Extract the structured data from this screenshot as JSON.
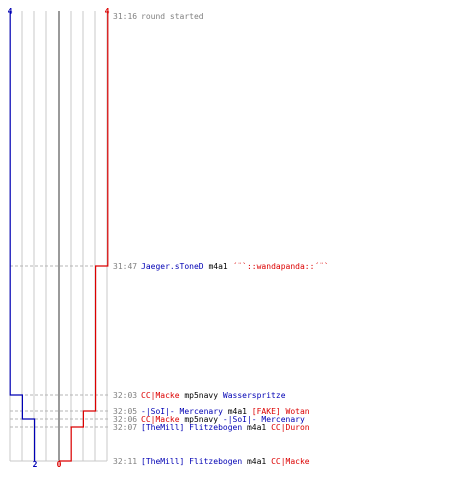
{
  "colors": {
    "grid": "#c8c8c8",
    "center": "#808080",
    "dotted": "#b4b4b4",
    "blue": "#0000b4",
    "red": "#dc0000",
    "time": "#808080",
    "neutral": "#000000"
  },
  "counts": {
    "blue_top": "4",
    "red_top": "4",
    "blue_bottom": "2",
    "red_bottom": "0"
  },
  "events": [
    {
      "time": "31:16",
      "parts": [
        {
          "text": "round started",
          "color": "time"
        }
      ]
    },
    {
      "time": "31:47",
      "parts": [
        {
          "text": "Jaeger.sToneD",
          "color": "blue"
        },
        {
          "text": " m4a1 ",
          "color": "neutral"
        },
        {
          "text": "´¨`::wandapanda::´¨`",
          "color": "red"
        }
      ]
    },
    {
      "time": "32:03",
      "parts": [
        {
          "text": "CC|Macke",
          "color": "red"
        },
        {
          "text": " mp5navy ",
          "color": "neutral"
        },
        {
          "text": "Wasserspritze",
          "color": "blue"
        }
      ]
    },
    {
      "time": "32:05",
      "parts": [
        {
          "text": "-|SoI|- Mercenary",
          "color": "blue"
        },
        {
          "text": " m4a1 ",
          "color": "neutral"
        },
        {
          "text": "[FAKE] Wotan",
          "color": "red"
        }
      ]
    },
    {
      "time": "32:06",
      "parts": [
        {
          "text": "CC|Macke",
          "color": "red"
        },
        {
          "text": " mp5navy ",
          "color": "neutral"
        },
        {
          "text": "-|SoI|- Mercenary",
          "color": "blue"
        }
      ]
    },
    {
      "time": "32:07",
      "parts": [
        {
          "text": "[TheMill] Flitzebogen",
          "color": "blue"
        },
        {
          "text": " m4a1 ",
          "color": "neutral"
        },
        {
          "text": "CC|Duron",
          "color": "red"
        }
      ]
    },
    {
      "time": "32:11",
      "parts": [
        {
          "text": "[TheMill] Flitzebogen",
          "color": "blue"
        },
        {
          "text": " m4a1 ",
          "color": "neutral"
        },
        {
          "text": "CC|Macke",
          "color": "red"
        }
      ]
    }
  ],
  "chart_data": {
    "type": "line",
    "x_unit": "time",
    "times": [
      "31:16",
      "31:47",
      "32:03",
      "32:05",
      "32:06",
      "32:07",
      "32:11"
    ],
    "series": [
      {
        "color": "blue",
        "values": [
          4,
          4,
          3,
          3,
          2,
          2,
          2
        ]
      },
      {
        "color": "red",
        "values": [
          4,
          3,
          3,
          2,
          2,
          1,
          0
        ]
      }
    ],
    "ylim": [
      0,
      4
    ],
    "grid": true
  }
}
